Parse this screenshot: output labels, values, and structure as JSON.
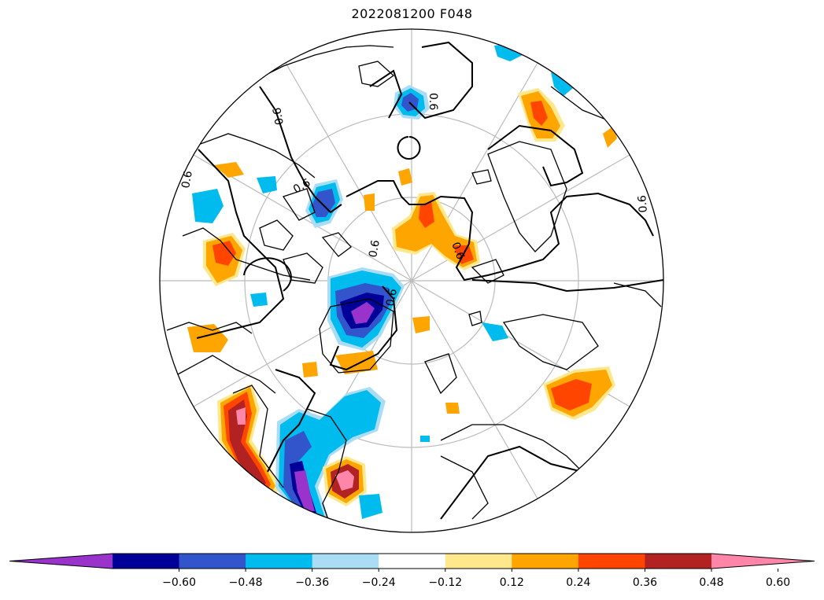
{
  "title": "2022081200 F048",
  "contour_label": "0.6",
  "colorbar": {
    "colors": [
      "#9933cc",
      "#000099",
      "#3355cc",
      "#00bbee",
      "#aaddf5",
      "#ffffff",
      "#ffe88c",
      "#ffa500",
      "#ff4500",
      "#b22222",
      "#ff85a9"
    ],
    "tick_labels": [
      "−0.60",
      "−0.48",
      "−0.36",
      "−0.24",
      "−0.12",
      "0.12",
      "0.24",
      "0.36",
      "0.48",
      "0.60"
    ],
    "extend": "both"
  },
  "map": {
    "projection": "north-polar-stereographic",
    "gridline_color": "#bbbbbb",
    "coastline_color": "#000000"
  }
}
